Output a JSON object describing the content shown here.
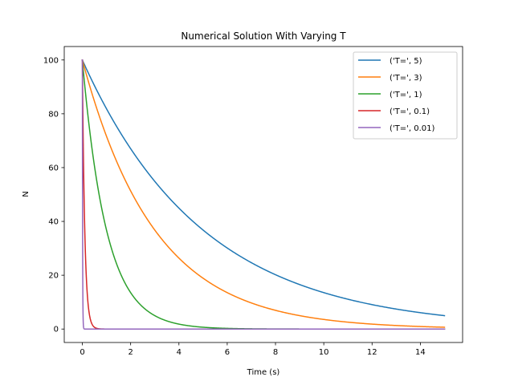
{
  "chart_data": {
    "type": "line",
    "title": "Numerical Solution With Varying T",
    "xlabel": "Time (s)",
    "ylabel": "N",
    "xlim": [
      -0.75,
      15.75
    ],
    "ylim": [
      -5,
      105
    ],
    "xticks": [
      0,
      2,
      4,
      6,
      8,
      10,
      12,
      14
    ],
    "yticks": [
      0,
      20,
      40,
      60,
      80,
      100
    ],
    "grid": false,
    "legend_position": "top-right",
    "model": {
      "N0": 100,
      "x_start": 0,
      "x_end": 15
    },
    "series": [
      {
        "name": "('T=', 5)",
        "T": 5,
        "color": "#1f77b4",
        "points": [
          [
            0,
            100
          ],
          [
            2,
            67.0
          ],
          [
            4,
            44.9
          ],
          [
            6,
            30.1
          ],
          [
            8,
            20.2
          ],
          [
            10,
            13.5
          ],
          [
            12,
            9.1
          ],
          [
            14,
            6.1
          ],
          [
            15,
            5.0
          ]
        ]
      },
      {
        "name": "('T=', 3)",
        "T": 3,
        "color": "#ff7f0e",
        "points": [
          [
            0,
            100
          ],
          [
            2,
            51.3
          ],
          [
            4,
            26.4
          ],
          [
            6,
            13.5
          ],
          [
            8,
            6.9
          ],
          [
            10,
            3.6
          ],
          [
            12,
            1.8
          ],
          [
            14,
            0.9
          ],
          [
            15,
            0.7
          ]
        ]
      },
      {
        "name": "('T=', 1)",
        "T": 1,
        "color": "#2ca02c",
        "points": [
          [
            0,
            100
          ],
          [
            1,
            36.8
          ],
          [
            2,
            13.5
          ],
          [
            3,
            5.0
          ],
          [
            4,
            1.8
          ],
          [
            6,
            0.2
          ],
          [
            8,
            0.0
          ],
          [
            15,
            0.0
          ]
        ]
      },
      {
        "name": "('T=', 0.1)",
        "T": 0.1,
        "color": "#d62728",
        "points": [
          [
            0,
            100
          ],
          [
            0.1,
            36.8
          ],
          [
            0.2,
            13.5
          ],
          [
            0.4,
            1.8
          ],
          [
            0.7,
            0.1
          ],
          [
            15,
            0.0
          ]
        ]
      },
      {
        "name": "('T=', 0.01)",
        "T": 0.01,
        "color": "#9467bd",
        "points": [
          [
            0,
            100
          ],
          [
            0.05,
            0.7
          ],
          [
            0.1,
            0.0
          ],
          [
            15,
            0.0
          ]
        ]
      }
    ]
  }
}
